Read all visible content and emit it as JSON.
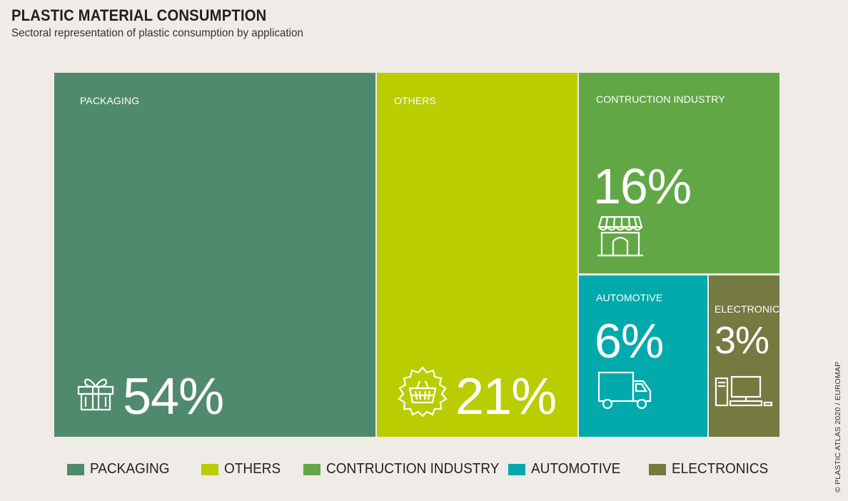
{
  "header": {
    "title": "PLASTIC MATERIAL CONSUMPTION",
    "subtitle": "Sectoral representation of plastic consumption by application"
  },
  "chart_data": {
    "type": "treemap",
    "title": "PLASTIC MATERIAL CONSUMPTION",
    "subtitle": "Sectoral representation of plastic consumption by application",
    "unit": "%",
    "series": [
      {
        "label": "PACKAGING",
        "value": 54,
        "value_text": "54%",
        "color": "#508a6e",
        "icon": "gift-icon"
      },
      {
        "label": "OTHERS",
        "value": 21,
        "value_text": "21%",
        "color": "#b9cd00",
        "icon": "shopping-basket-icon"
      },
      {
        "label": "CONTRUCTION INDUSTRY",
        "value": 16,
        "value_text": "16%",
        "color": "#62a746",
        "icon": "storefront-icon"
      },
      {
        "label": "AUTOMOTIVE",
        "value": 6,
        "value_text": "6%",
        "color": "#00a9ac",
        "icon": "truck-icon"
      },
      {
        "label": "ELECTRONICS",
        "value": 3,
        "value_text": "3%",
        "color": "#747a40",
        "icon": "computer-icon"
      }
    ],
    "legend": {
      "placement": "bottom",
      "items": [
        "PACKAGING",
        "OTHERS",
        "CONTRUCTION INDUSTRY",
        "AUTOMOTIVE",
        "ELECTRONICS"
      ]
    }
  },
  "credit": "© PLASTIC ATLAS 2020 / EUROMAP"
}
